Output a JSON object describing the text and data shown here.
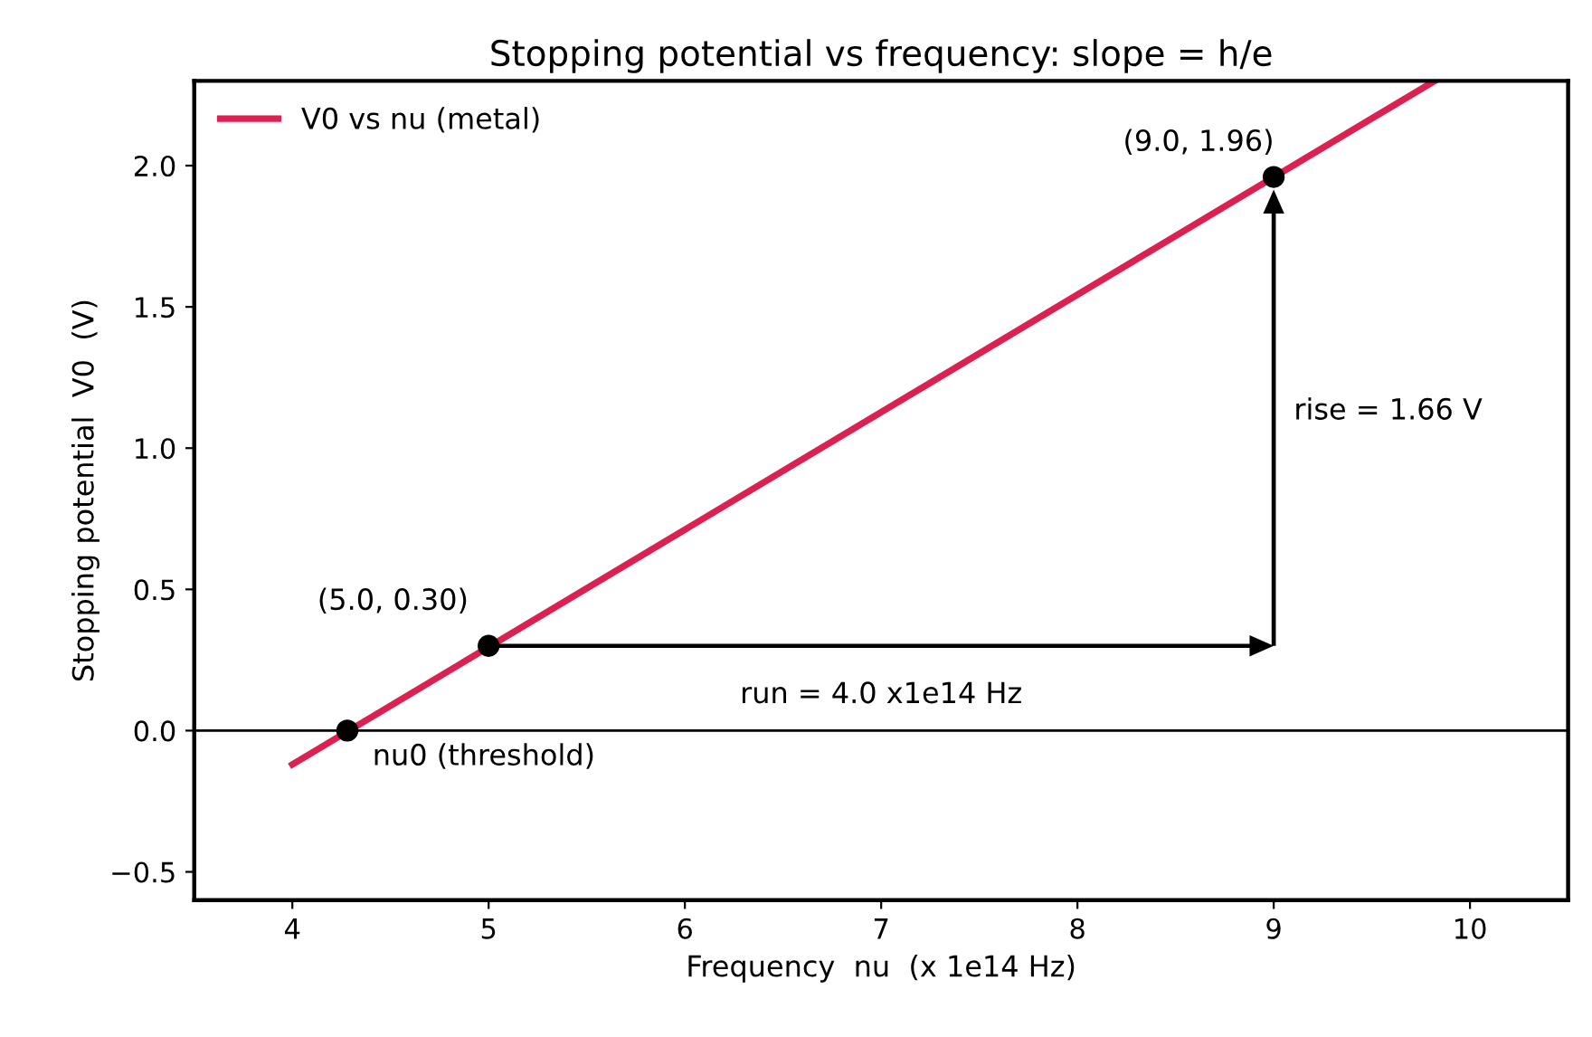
{
  "chart_data": {
    "type": "line",
    "title": "Stopping potential vs frequency: slope = h/e",
    "xlabel": "Frequency  nu  (x 1e14 Hz)",
    "ylabel": "Stopping potential  V0  (V)",
    "xlim": [
      3.5,
      10.5
    ],
    "xticks": [
      4,
      5,
      6,
      7,
      8,
      9,
      10
    ],
    "ylim": [
      -0.6,
      2.3
    ],
    "yticks": [
      {
        "value": -0.5,
        "label": "−0.5"
      },
      {
        "value": 0.0,
        "label": "0.0"
      },
      {
        "value": 0.5,
        "label": "0.5"
      },
      {
        "value": 1.0,
        "label": "1.0"
      },
      {
        "value": 1.5,
        "label": "1.5"
      },
      {
        "value": 2.0,
        "label": "2.0"
      }
    ],
    "series": [
      {
        "name": "V0 vs nu (metal)",
        "color": "#dc2050",
        "x": [
          4.0,
          9.82
        ],
        "values": [
          -0.12,
          2.3
        ]
      },
      {
        "type": "scatter",
        "marker": "circle",
        "color": "#000000",
        "x": [
          4.28,
          5.0,
          9.0
        ],
        "values": [
          0.0,
          0.3,
          1.96
        ]
      }
    ],
    "ref_lines": [
      {
        "axis": "y",
        "value": 0.0,
        "color": "#000000"
      }
    ],
    "annotations": [
      {
        "text": "nu0 (threshold)",
        "x": 4.28,
        "y": 0.0
      },
      {
        "text": "(5.0, 0.30)",
        "x": 5.0,
        "y": 0.3
      },
      {
        "text": "(9.0, 1.96)",
        "x": 9.0,
        "y": 1.96
      },
      "run = 4.0 x1e14 Hz",
      "rise = 1.66 V"
    ],
    "legend": "top left",
    "grid": false
  }
}
